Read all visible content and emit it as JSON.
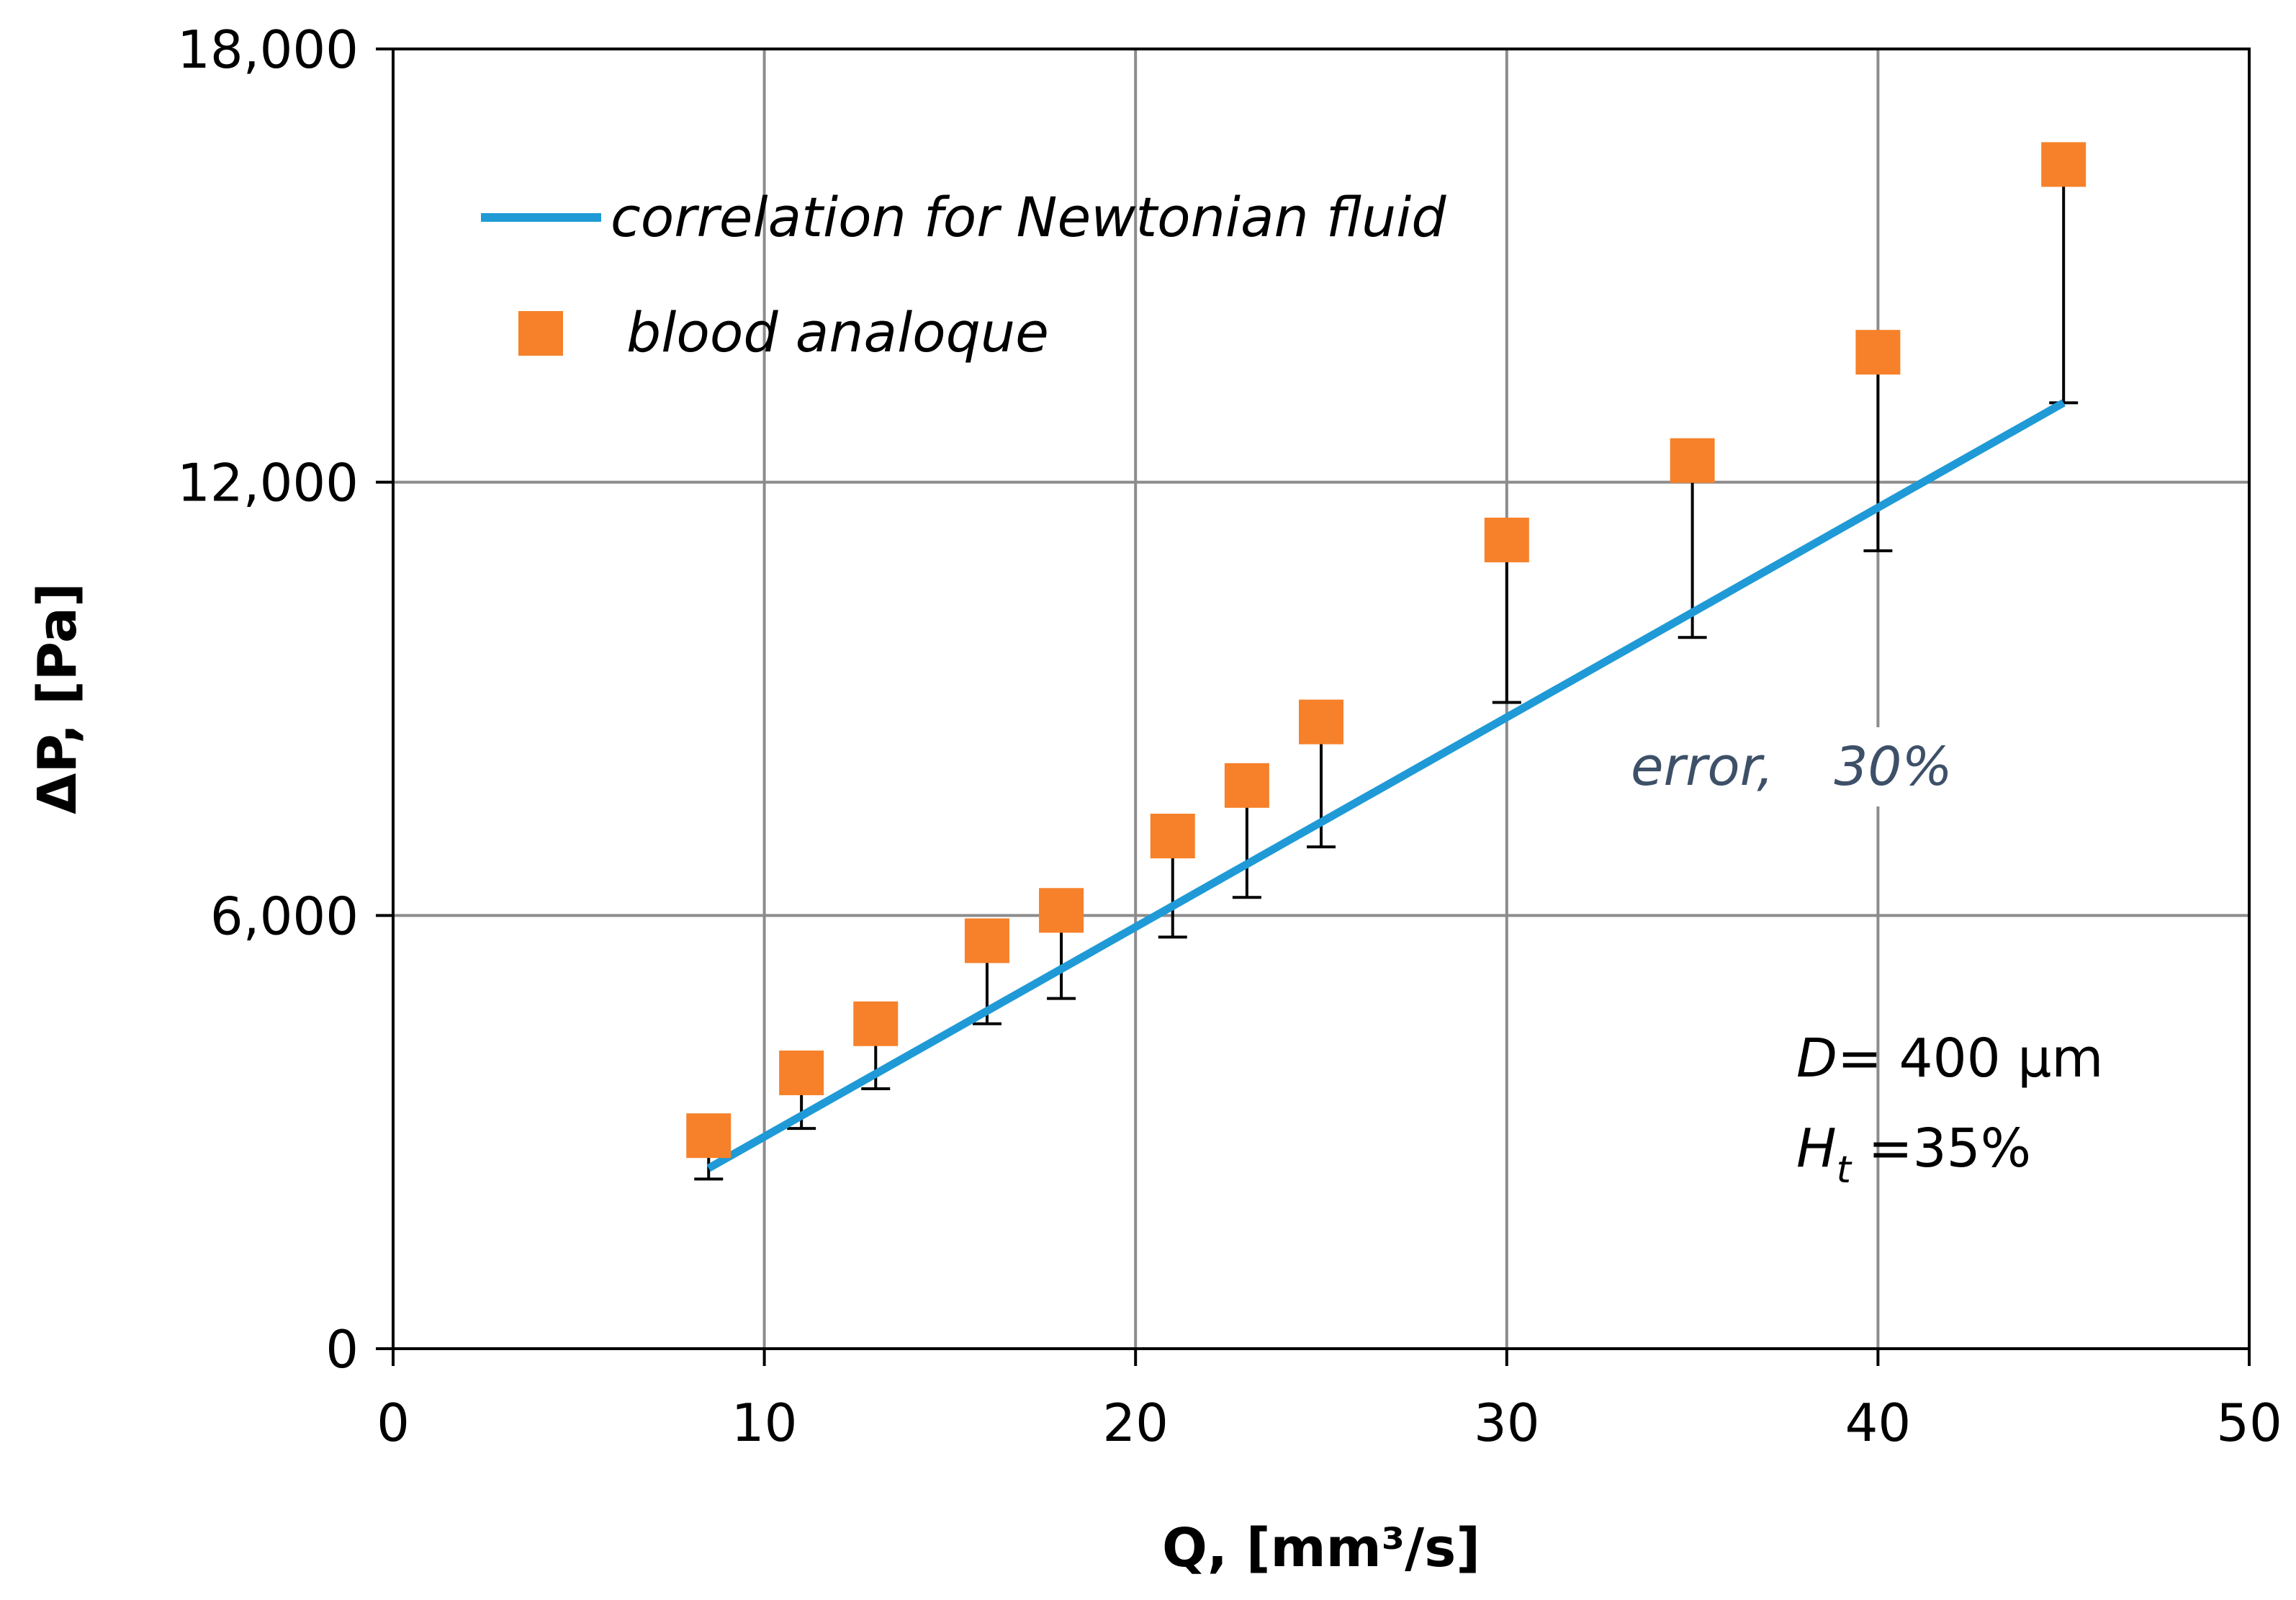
{
  "chart_data": {
    "type": "scatter",
    "title": "",
    "xlabel": "Q,  [mm³/s]",
    "ylabel": "ΔP, [Pa]",
    "xlim": [
      0,
      50
    ],
    "ylim": [
      0,
      18000
    ],
    "x_ticks": [
      0,
      10,
      20,
      30,
      40,
      50
    ],
    "x_tick_labels": [
      "0",
      "10",
      "20",
      "30",
      "40",
      "50"
    ],
    "y_ticks": [
      0,
      6000,
      12000,
      18000
    ],
    "y_tick_labels": [
      "0",
      "6,000",
      "12,000",
      "18,000"
    ],
    "grid": true,
    "legend_position": "top-left",
    "series": [
      {
        "name": "correlation for Newtonian fluid",
        "kind": "line",
        "color": "#1f9ad6",
        "x": [
          8.5,
          45
        ],
        "y": [
          2500,
          13100
        ]
      },
      {
        "name": "blood analoque",
        "kind": "scatter",
        "marker": "square",
        "color": "#f6812a",
        "x": [
          8.5,
          11,
          13,
          16,
          18,
          21,
          23,
          25,
          30,
          35,
          40,
          45
        ],
        "y": [
          2950,
          3820,
          4500,
          5650,
          6070,
          7100,
          7800,
          8680,
          11200,
          12300,
          13800,
          16400
        ],
        "error_lower": [
          2350,
          3050,
          3600,
          4500,
          4850,
          5700,
          6250,
          6950,
          8950,
          9850,
          11050,
          13100
        ]
      }
    ],
    "annotations": {
      "error_label": "error,",
      "error_value": "30%",
      "diameter_symbol": "D",
      "diameter_value": "= 400 µm",
      "hematocrit_symbol": "H",
      "hematocrit_subscript": "t",
      "hematocrit_value": " =35%"
    }
  }
}
